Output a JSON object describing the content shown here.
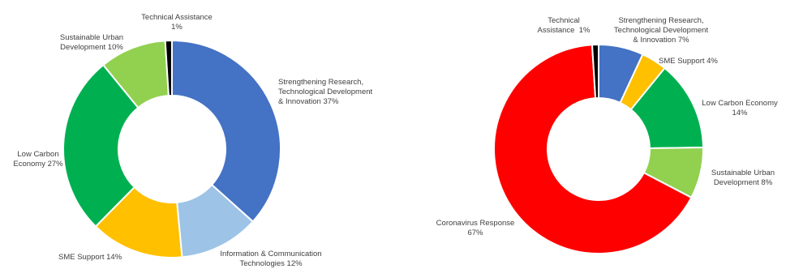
{
  "chart_data": [
    {
      "type": "pie",
      "subtype": "donut",
      "colors": [
        "#4472C4",
        "#9DC3E6",
        "#FFC000",
        "#00B050",
        "#92D050",
        "#000000"
      ],
      "slices": [
        {
          "label": "Strengthening Research, Technological Development & Innovation",
          "value": 37,
          "text": "Strengthening Research,\nTechnological Development\n& Innovation 37%"
        },
        {
          "label": "Information & Communication Technologies",
          "value": 12,
          "text": "Information & Communication\nTechnologies 12%"
        },
        {
          "label": "SME Support",
          "value": 14,
          "text": "SME Support 14%"
        },
        {
          "label": "Low Carbon Economy",
          "value": 27,
          "text": "Low Carbon\nEconomy 27%"
        },
        {
          "label": "Sustainable Urban Development",
          "value": 10,
          "text": "Sustainable Urban\nDevelopment 10%"
        },
        {
          "label": "Technical Assistance",
          "value": 1,
          "text": "Technical Assistance\n1%"
        }
      ]
    },
    {
      "type": "pie",
      "subtype": "donut",
      "colors": [
        "#4472C4",
        "#FFC000",
        "#00B050",
        "#92D050",
        "#FF0000",
        "#000000"
      ],
      "slices": [
        {
          "label": "Strengthening Research, Technological Development & Innovation",
          "value": 7,
          "text": "Strengthening Research,\nTechnological Development\n& Innovation 7%"
        },
        {
          "label": "SME Support",
          "value": 4,
          "text": "SME Support 4%"
        },
        {
          "label": "Low Carbon Economy",
          "value": 14,
          "text": "Low Carbon Economy\n14%"
        },
        {
          "label": "Sustainable Urban Development",
          "value": 8,
          "text": "Sustainable Urban\nDevelopment 8%"
        },
        {
          "label": "Coronavirus Response",
          "value": 67,
          "text": "Coronavirus Response\n67%"
        },
        {
          "label": "Technical Assistance",
          "value": 1,
          "text": "Technical\nAssistance  1%"
        }
      ]
    }
  ]
}
